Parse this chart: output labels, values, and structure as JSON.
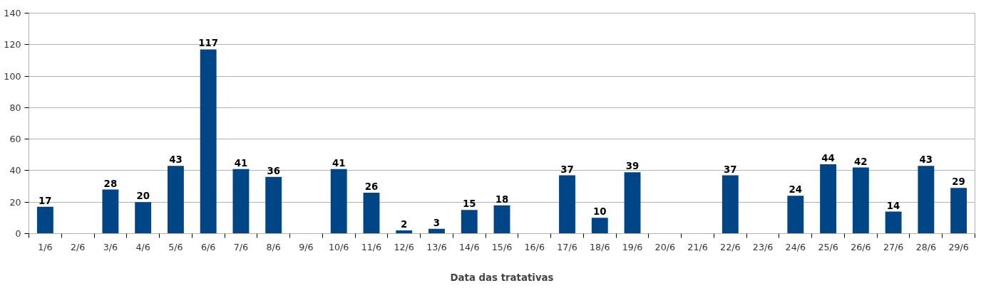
{
  "chart_data": {
    "type": "bar",
    "xlabel": "Data das tratativas",
    "categories": [
      "1/6",
      "2/6",
      "3/6",
      "4/6",
      "5/6",
      "6/6",
      "7/6",
      "8/6",
      "9/6",
      "10/6",
      "11/6",
      "12/6",
      "13/6",
      "14/6",
      "15/6",
      "16/6",
      "17/6",
      "18/6",
      "19/6",
      "20/6",
      "21/6",
      "22/6",
      "23/6",
      "24/6",
      "25/6",
      "26/6",
      "27/6",
      "28/6",
      "29/6"
    ],
    "values": [
      17,
      null,
      28,
      20,
      43,
      117,
      41,
      36,
      null,
      41,
      26,
      2,
      3,
      15,
      18,
      null,
      37,
      10,
      39,
      null,
      null,
      37,
      null,
      24,
      44,
      42,
      14,
      43,
      29
    ],
    "color": "#004586",
    "ylim": [
      0,
      140
    ],
    "yticks": [
      0,
      20,
      40,
      60,
      80,
      100,
      120,
      140
    ],
    "grid": "y",
    "data_labels": true
  }
}
